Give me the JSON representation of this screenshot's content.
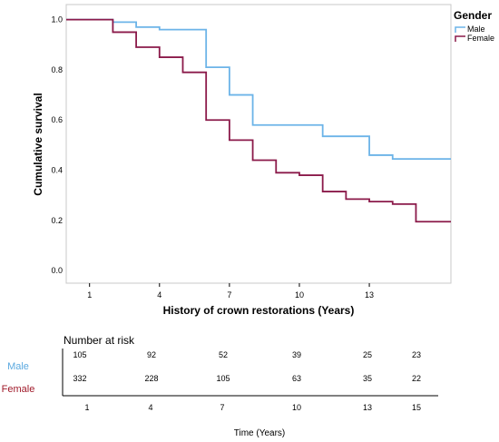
{
  "chart_data": {
    "type": "line",
    "step": true,
    "xlabel": "History of crown restorations (Years)",
    "ylabel": "Cumulative survival",
    "xlim": [
      0,
      16.5
    ],
    "ylim": [
      -0.05,
      1.06
    ],
    "x_ticks": [
      1,
      4,
      7,
      10,
      13
    ],
    "y_ticks": [
      0.0,
      0.2,
      0.4,
      0.6,
      0.8,
      1.0
    ],
    "y_tick_labels": [
      "0.0",
      "0.2",
      "0.4",
      "0.6",
      "0.8",
      "1.0"
    ],
    "legend": {
      "title": "Gender",
      "placement": "top-right"
    },
    "series": [
      {
        "name": "Male",
        "color": "#6cb4e8",
        "x": [
          0,
          2.0,
          3.0,
          4.0,
          6.0,
          7.0,
          8.0,
          11.0,
          13.0,
          14.0,
          16.5
        ],
        "y": [
          1.0,
          0.99,
          0.97,
          0.96,
          0.81,
          0.7,
          0.58,
          0.535,
          0.46,
          0.445,
          0.445
        ]
      },
      {
        "name": "Female",
        "color": "#8b1a4a",
        "x": [
          0,
          2.0,
          3.0,
          4.0,
          5.0,
          6.0,
          7.0,
          8.0,
          9.0,
          10.0,
          11.0,
          12.0,
          13.0,
          14.0,
          15.0,
          16.5
        ],
        "y": [
          1.0,
          0.95,
          0.89,
          0.85,
          0.79,
          0.6,
          0.52,
          0.44,
          0.39,
          0.38,
          0.315,
          0.285,
          0.275,
          0.265,
          0.195,
          0.195
        ]
      }
    ]
  },
  "risk_table": {
    "title": "Number at risk",
    "time_label": "Time (Years)",
    "times": [
      "1",
      "4",
      "7",
      "10",
      "13",
      "15"
    ],
    "rows": [
      {
        "group": "Male",
        "color": "#5ba9e0",
        "values": [
          "105",
          "92",
          "52",
          "39",
          "25",
          "23"
        ]
      },
      {
        "group": "Female",
        "color": "#a01a2a",
        "values": [
          "332",
          "228",
          "105",
          "63",
          "35",
          "22"
        ]
      }
    ]
  }
}
